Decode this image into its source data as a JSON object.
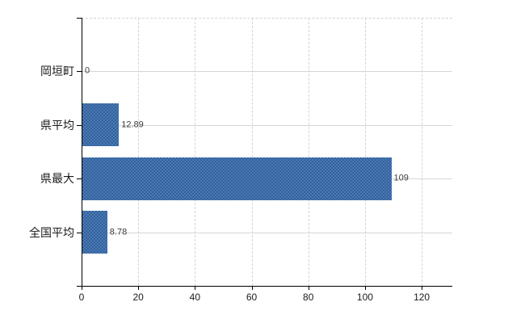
{
  "chart_data": {
    "type": "bar",
    "orientation": "horizontal",
    "title": "",
    "xlabel": "",
    "ylabel": "",
    "categories": [
      "岡垣町",
      "県平均",
      "県最大",
      "全国平均"
    ],
    "values": [
      0,
      12.89,
      109,
      8.78
    ],
    "value_labels": [
      "0",
      "12.89",
      "109",
      "8.78"
    ],
    "xticks": [
      0,
      20,
      40,
      60,
      80,
      100,
      120
    ],
    "xtick_labels": [
      "0",
      "20",
      "40",
      "60",
      "80",
      "100",
      "120"
    ],
    "xlim": [
      0,
      130.8
    ],
    "grid": true,
    "legend": false,
    "colors": {
      "bar": "#3d6ea9",
      "bar_checker_light": "#4a7bb7",
      "bar_checker_dark": "#336099",
      "axis": "#000000",
      "gridline_h": "#d6d6d6",
      "gridline_v": "#d4d4d4",
      "category_text": "#1a1a1a",
      "value_text": "#3d3d3d",
      "tick_text": "#1a1a1a",
      "background": "#ffffff"
    }
  }
}
